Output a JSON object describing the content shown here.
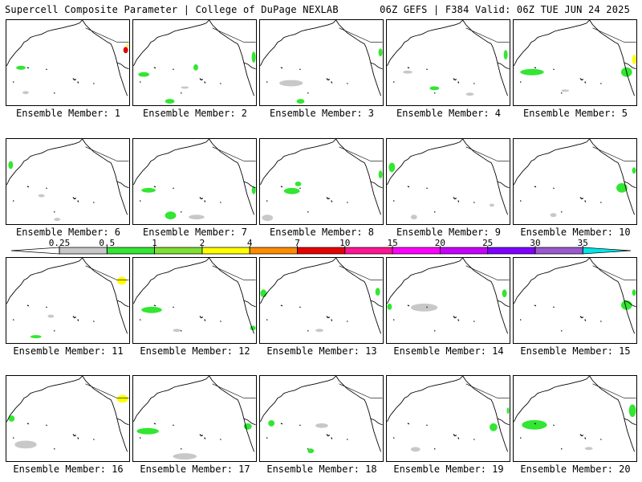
{
  "header": {
    "title": "Supercell Composite Parameter | College of DuPage NEXLAB",
    "run_info": "06Z GEFS | F384 Valid: 06Z TUE JUN 24 2025"
  },
  "panel_label_prefix": "Ensemble Member:",
  "panels": [
    {
      "member": "1"
    },
    {
      "member": "2"
    },
    {
      "member": "3"
    },
    {
      "member": "4"
    },
    {
      "member": "5"
    },
    {
      "member": "6"
    },
    {
      "member": "7"
    },
    {
      "member": "8"
    },
    {
      "member": "9"
    },
    {
      "member": "10"
    },
    {
      "member": "11"
    },
    {
      "member": "12"
    },
    {
      "member": "13"
    },
    {
      "member": "14"
    },
    {
      "member": "15"
    },
    {
      "member": "16"
    },
    {
      "member": "17"
    },
    {
      "member": "18"
    },
    {
      "member": "19"
    },
    {
      "member": "20"
    }
  ],
  "colorbar": {
    "ticks": [
      "0.25",
      "0.5",
      "1",
      "2",
      "4",
      "7",
      "10",
      "15",
      "20",
      "25",
      "30",
      "35"
    ],
    "colors": [
      "#ffffff",
      "#c8c8c8",
      "#32e632",
      "#7fe032",
      "#ffff00",
      "#ff8c00",
      "#e60000",
      "#ff1493",
      "#ff00ff",
      "#c800ff",
      "#7f00ff",
      "#9b59d0",
      "#00e6e6"
    ]
  },
  "colors": {
    "low": "#c8c8c8",
    "green": "#32e632",
    "yellow": "#ffff00",
    "red": "#e60000"
  }
}
